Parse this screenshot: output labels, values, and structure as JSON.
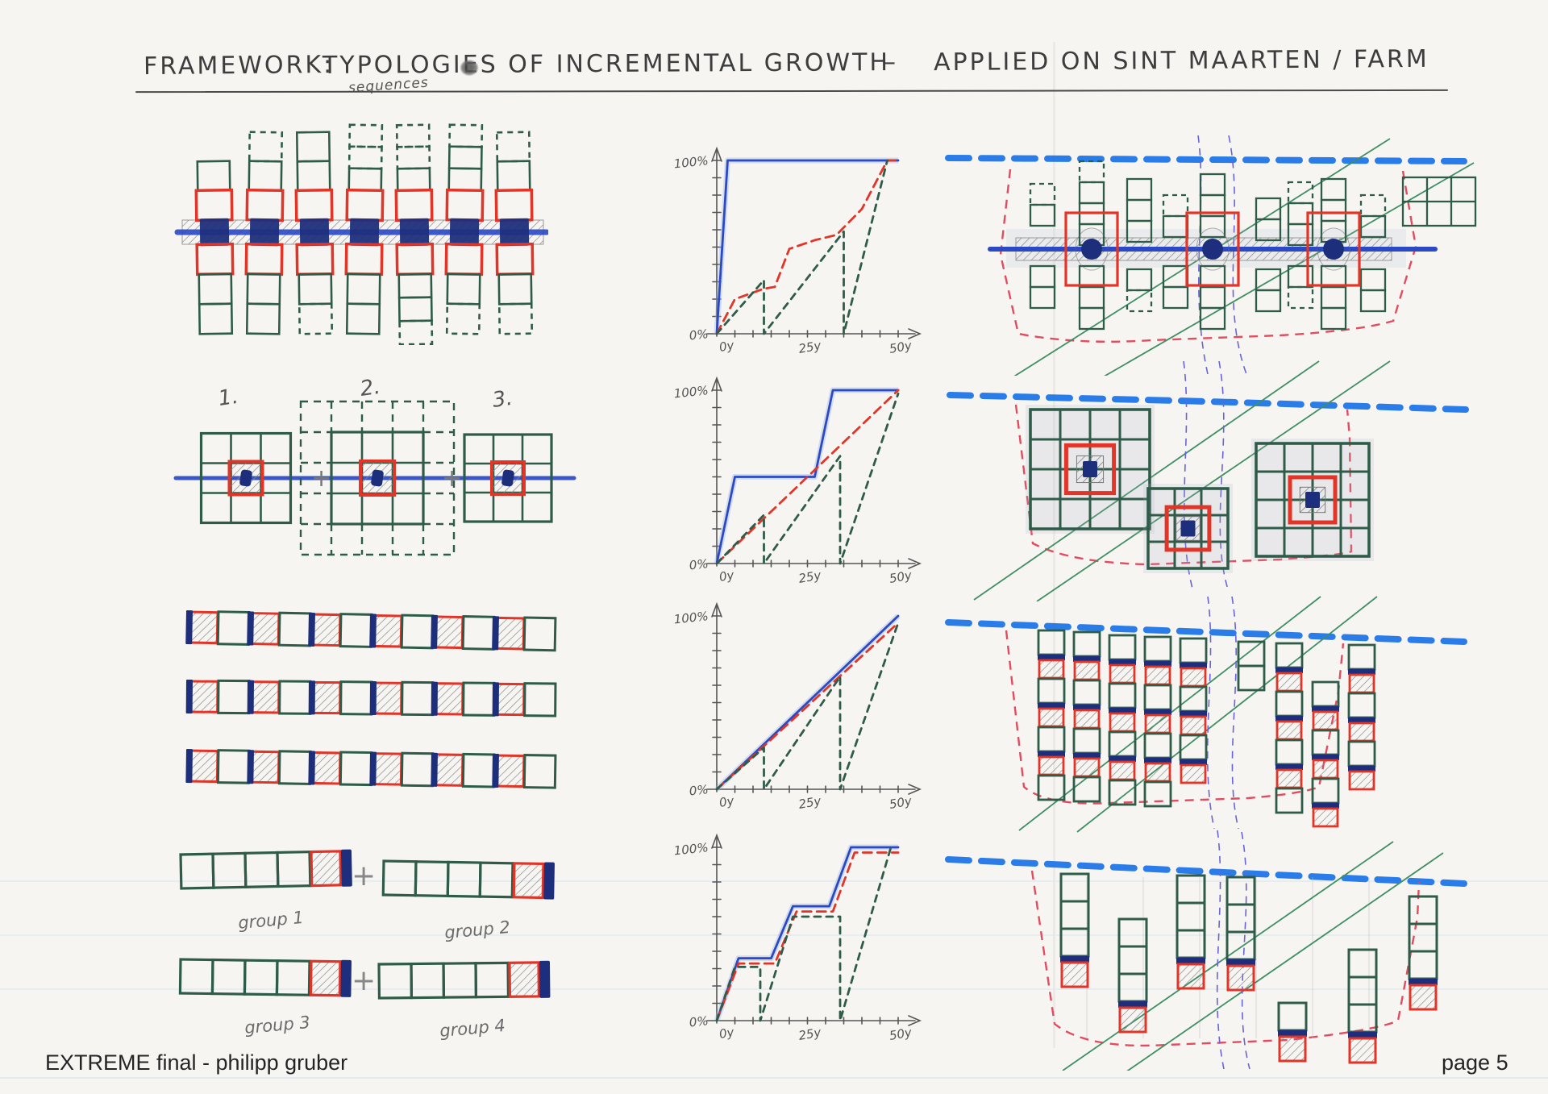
{
  "page": {
    "title": {
      "prefix": "FRAMEWORK:",
      "main": "TYPOLOGIES OF INCREMENTAL GROWTH",
      "annotation": "sequences",
      "separator": "–",
      "suffix": "APPLIED ON SINT MAARTEN / FARM"
    },
    "footer": {
      "left": "EXTREME final - philipp gruber",
      "right": "page 5"
    }
  },
  "colors": {
    "ink": "#3d3d3d",
    "pencil": "#6f6f6f",
    "axis": "#555555",
    "green_pen": "#2f5c49",
    "red_pen": "#e23427",
    "navy": "#1d2f7c",
    "blue_marker": "#2b49c4",
    "blue_halo": "#8fb0e6",
    "coast_blue": "#1f76e8",
    "road_green": "#3f8f63",
    "purple_dashed": "#6a63d8",
    "boundary_red": "#e34b5f",
    "hatch_gray": "#8a8a8a",
    "wash_blue": "#aab4c8"
  },
  "labels": {
    "typology2_items": [
      "1.",
      "2.",
      "3."
    ],
    "plus_sign": "+",
    "group_labels": [
      "group 1",
      "group 2",
      "group 3",
      "group 4"
    ]
  },
  "sketch_params": {
    "typology1": {
      "strip_count": 7,
      "strips": [
        {
          "above": 1,
          "adash": 0,
          "below": 2,
          "bdash": 0
        },
        {
          "above": 2,
          "adash": 1,
          "below": 2,
          "bdash": 0
        },
        {
          "above": 2,
          "adash": 0,
          "below": 2,
          "bdash": 1
        },
        {
          "above": 3,
          "adash": 2,
          "below": 2,
          "bdash": 0
        },
        {
          "above": 3,
          "adash": 2,
          "below": 3,
          "bdash": 1
        },
        {
          "above": 3,
          "adash": 1,
          "below": 2,
          "bdash": 1
        },
        {
          "above": 2,
          "adash": 1,
          "below": 2,
          "bdash": 1
        }
      ]
    },
    "typology3": {
      "strip_count": 3,
      "squares_per_strip": 12
    },
    "typology4": {
      "strip_count": 4,
      "green_cells_per_strip": 4
    }
  },
  "chart_data": [
    {
      "type": "line",
      "name": "growth curve 1",
      "xlim": [
        0,
        50
      ],
      "ylim": [
        0,
        100
      ],
      "grid": false,
      "legend": "none",
      "x_tick_labels": [
        "0y",
        "25y",
        "50y"
      ],
      "y_tick_labels": [
        "0%",
        "100%"
      ],
      "series": [
        {
          "name": "blue solid line",
          "style": "solid",
          "color_key": "blue_marker",
          "points": [
            [
              0,
              0
            ],
            [
              3,
              100
            ],
            [
              50,
              100
            ]
          ]
        },
        {
          "name": "red dashed line",
          "style": "dashed",
          "color_key": "red_pen",
          "points": [
            [
              0,
              0
            ],
            [
              5,
              20
            ],
            [
              13,
              26
            ],
            [
              16,
              27
            ],
            [
              20,
              49
            ],
            [
              27,
              54
            ],
            [
              33,
              57
            ],
            [
              40,
              72
            ],
            [
              47,
              100
            ],
            [
              50,
              100
            ]
          ]
        },
        {
          "name": "green dashed sawtooth",
          "style": "dashed",
          "color_key": "green_pen",
          "points": [
            [
              0,
              0
            ],
            [
              13,
              31
            ],
            [
              13,
              0
            ],
            [
              35,
              59
            ],
            [
              35,
              0
            ],
            [
              47,
              100
            ]
          ]
        }
      ]
    },
    {
      "type": "line",
      "name": "growth curve 2",
      "xlim": [
        0,
        50
      ],
      "ylim": [
        0,
        100
      ],
      "grid": false,
      "legend": "none",
      "x_tick_labels": [
        "0y",
        "25y",
        "50y"
      ],
      "y_tick_labels": [
        "0%",
        "100%"
      ],
      "series": [
        {
          "name": "blue solid line",
          "style": "solid",
          "color_key": "blue_marker",
          "points": [
            [
              0,
              0
            ],
            [
              5,
              50
            ],
            [
              27,
              50
            ],
            [
              32,
              100
            ],
            [
              50,
              100
            ]
          ]
        },
        {
          "name": "red dashed line",
          "style": "dashed",
          "color_key": "red_pen",
          "points": [
            [
              0,
              0
            ],
            [
              50,
              100
            ]
          ]
        },
        {
          "name": "green dashed sawtooth",
          "style": "dashed",
          "color_key": "green_pen",
          "points": [
            [
              0,
              0
            ],
            [
              13,
              28
            ],
            [
              13,
              0
            ],
            [
              34,
              62
            ],
            [
              34,
              0
            ],
            [
              50,
              98
            ]
          ]
        }
      ]
    },
    {
      "type": "line",
      "name": "growth curve 3",
      "xlim": [
        0,
        50
      ],
      "ylim": [
        0,
        100
      ],
      "grid": false,
      "legend": "none",
      "x_tick_labels": [
        "0y",
        "25y",
        "50y"
      ],
      "y_tick_labels": [
        "0%",
        "100%"
      ],
      "series": [
        {
          "name": "blue solid line",
          "style": "solid",
          "color_key": "blue_marker",
          "points": [
            [
              0,
              0
            ],
            [
              50,
              100
            ]
          ]
        },
        {
          "name": "red dashed line",
          "style": "dashed",
          "color_key": "red_pen",
          "points": [
            [
              0,
              0
            ],
            [
              50,
              96
            ]
          ]
        },
        {
          "name": "green dashed sawtooth",
          "style": "dashed",
          "color_key": "green_pen",
          "points": [
            [
              0,
              0
            ],
            [
              13,
              24
            ],
            [
              13,
              0
            ],
            [
              34,
              65
            ],
            [
              34,
              0
            ],
            [
              50,
              96
            ]
          ]
        }
      ]
    },
    {
      "type": "line",
      "name": "growth curve 4",
      "xlim": [
        0,
        50
      ],
      "ylim": [
        0,
        100
      ],
      "grid": false,
      "legend": "none",
      "x_tick_labels": [
        "0y",
        "25y",
        "50y"
      ],
      "y_tick_labels": [
        "0%",
        "100%"
      ],
      "series": [
        {
          "name": "blue solid line",
          "style": "solid",
          "color_key": "blue_marker",
          "points": [
            [
              0,
              0
            ],
            [
              6,
              36
            ],
            [
              15,
              36
            ],
            [
              21,
              66
            ],
            [
              31,
              66
            ],
            [
              37,
              100
            ],
            [
              50,
              100
            ]
          ]
        },
        {
          "name": "red dashed line",
          "style": "dashed",
          "color_key": "red_pen",
          "points": [
            [
              0,
              0
            ],
            [
              6,
              33
            ],
            [
              16,
              33
            ],
            [
              22,
              63
            ],
            [
              32,
              63
            ],
            [
              38,
              97
            ],
            [
              50,
              97
            ]
          ]
        },
        {
          "name": "green dashed sawtooth",
          "style": "dashed",
          "color_key": "green_pen",
          "points": [
            [
              0,
              0
            ],
            [
              5,
              31
            ],
            [
              12,
              31
            ],
            [
              12,
              0
            ],
            [
              21,
              60
            ],
            [
              34,
              60
            ],
            [
              34,
              0
            ],
            [
              48,
              100
            ]
          ]
        }
      ]
    }
  ]
}
